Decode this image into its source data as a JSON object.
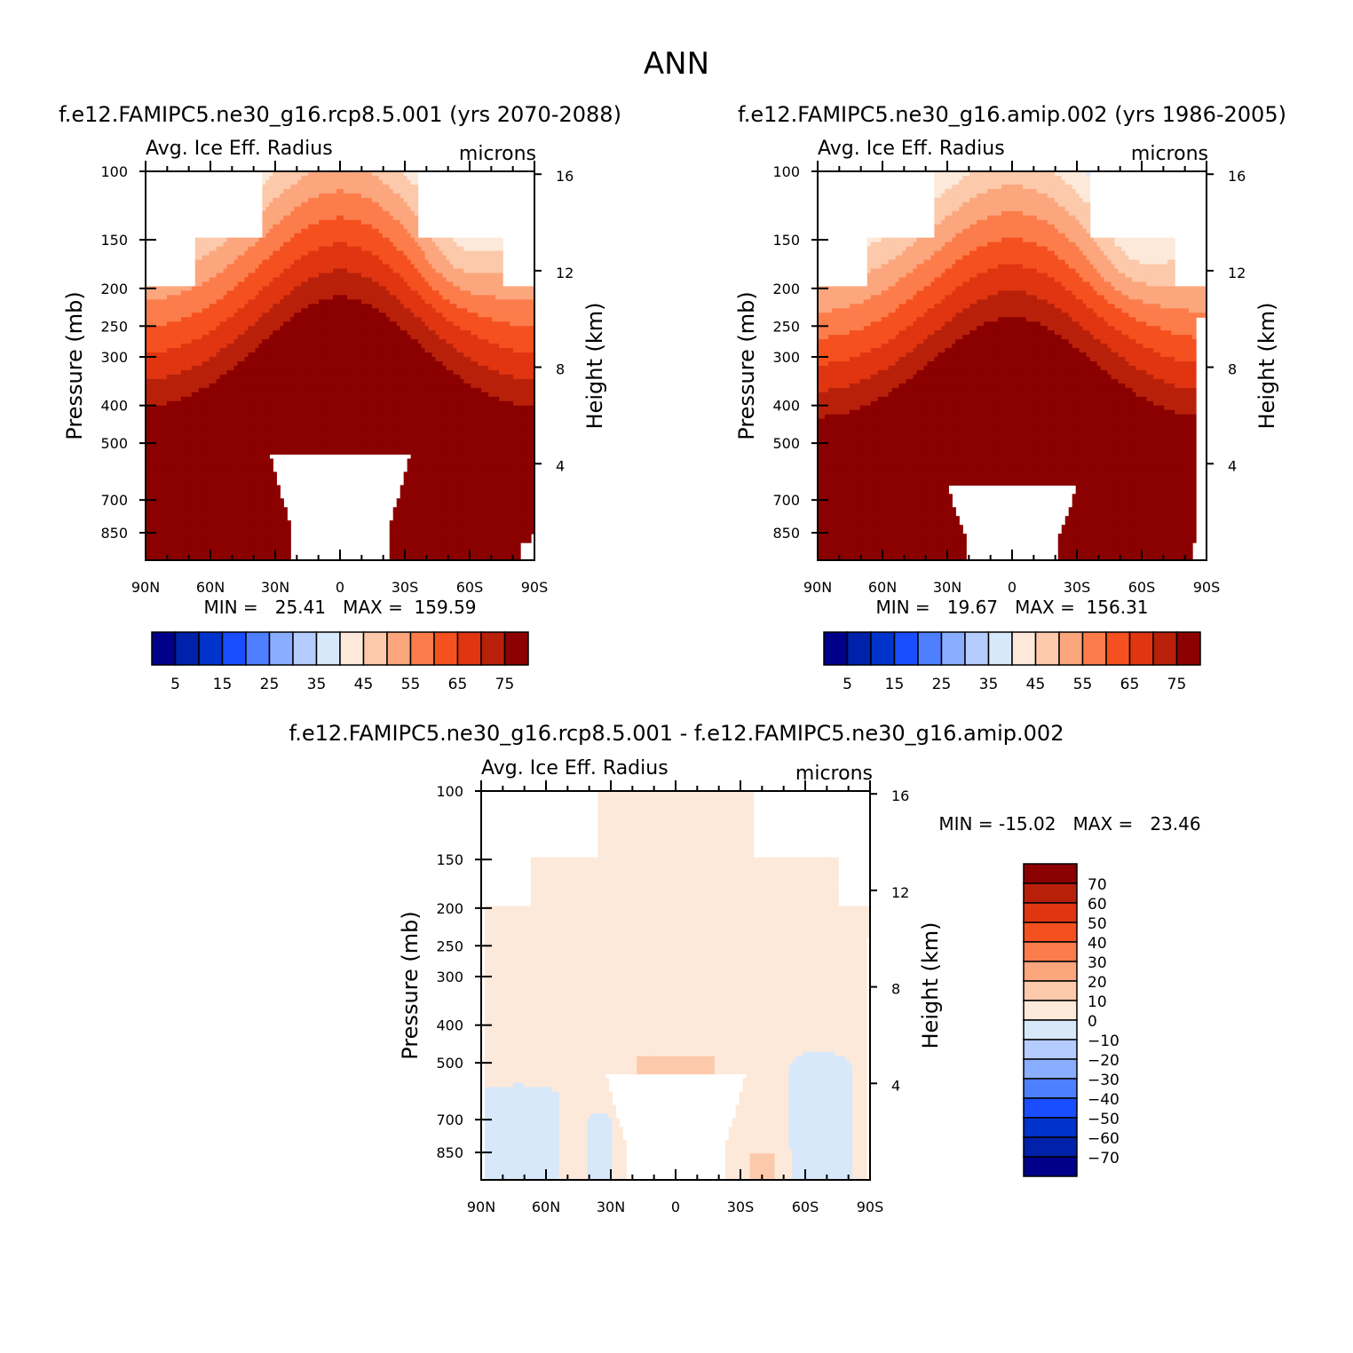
{
  "figure_title": "ANN",
  "colors": {
    "ramp16": [
      "#00008b",
      "#0022aa",
      "#0033cc",
      "#1a4dff",
      "#4d7fff",
      "#8aaeff",
      "#b5ccff",
      "#d6e8fa",
      "#fde9da",
      "#fcc9ab",
      "#fca67e",
      "#fc7d4b",
      "#f5501f",
      "#e03510",
      "#b8200a",
      "#8b0000"
    ],
    "diff_ramp": [
      "#8b0000",
      "#b8200a",
      "#e03510",
      "#f5501f",
      "#fc7d4b",
      "#fca67e",
      "#fcc9ab",
      "#fde9da",
      "#d6e8fa",
      "#b5ccff",
      "#8aaeff",
      "#4d7fff",
      "#1a4dff",
      "#0033cc",
      "#0022aa",
      "#00008b"
    ]
  },
  "chart_data": [
    {
      "type": "heatmap",
      "panel": "top-left",
      "title": "f.e12.FAMIPC5.ne30_g16.rcp8.5.001 (yrs 2070-2088)",
      "left_label": "Avg. Ice Eff. Radius",
      "right_label": "microns",
      "ylabel": "Pressure (mb)",
      "y2label": "Height (km)",
      "x_ticks": [
        "90N",
        "60N",
        "30N",
        "0",
        "30S",
        "60S",
        "90S"
      ],
      "y_ticks": [
        "100",
        "150",
        "200",
        "250",
        "300",
        "400",
        "500",
        "700",
        "850"
      ],
      "y2_ticks": [
        "16",
        "12",
        "8",
        "4"
      ],
      "min_max": "MIN =   25.41   MAX =  159.59",
      "min": 25.41,
      "max": 159.59,
      "colorbar_labels": [
        "5",
        "15",
        "25",
        "35",
        "45",
        "55",
        "65",
        "75"
      ],
      "levels": [
        0,
        5,
        10,
        15,
        20,
        25,
        30,
        35,
        40,
        45,
        50,
        55,
        60,
        65,
        70,
        75,
        80
      ],
      "units": "microns"
    },
    {
      "type": "heatmap",
      "panel": "top-right",
      "title": "f.e12.FAMIPC5.ne30_g16.amip.002 (yrs 1986-2005)",
      "left_label": "Avg. Ice Eff. Radius",
      "right_label": "microns",
      "ylabel": "Pressure (mb)",
      "y2label": "Height (km)",
      "x_ticks": [
        "90N",
        "60N",
        "30N",
        "0",
        "30S",
        "60S",
        "90S"
      ],
      "y_ticks": [
        "100",
        "150",
        "200",
        "250",
        "300",
        "400",
        "500",
        "700",
        "850"
      ],
      "y2_ticks": [
        "16",
        "12",
        "8",
        "4"
      ],
      "min_max": "MIN =   19.67   MAX =  156.31",
      "min": 19.67,
      "max": 156.31,
      "colorbar_labels": [
        "5",
        "15",
        "25",
        "35",
        "45",
        "55",
        "65",
        "75"
      ],
      "levels": [
        0,
        5,
        10,
        15,
        20,
        25,
        30,
        35,
        40,
        45,
        50,
        55,
        60,
        65,
        70,
        75,
        80
      ],
      "units": "microns"
    },
    {
      "type": "heatmap",
      "panel": "bottom",
      "title": "f.e12.FAMIPC5.ne30_g16.rcp8.5.001 - f.e12.FAMIPC5.ne30_g16.amip.002",
      "left_label": "Avg. Ice Eff. Radius",
      "right_label": "microns",
      "ylabel": "Pressure (mb)",
      "y2label": "Height (km)",
      "x_ticks": [
        "90N",
        "60N",
        "30N",
        "0",
        "30S",
        "60S",
        "90S"
      ],
      "y_ticks": [
        "100",
        "150",
        "200",
        "250",
        "300",
        "400",
        "500",
        "700",
        "850"
      ],
      "y2_ticks": [
        "16",
        "12",
        "8",
        "4"
      ],
      "min_max": "MIN = -15.02   MAX =   23.46",
      "min": -15.02,
      "max": 23.46,
      "colorbar_labels": [
        "70",
        "60",
        "50",
        "40",
        "30",
        "20",
        "10",
        "0",
        "-10",
        "-20",
        "-30",
        "-40",
        "-50",
        "-60",
        "-70"
      ],
      "levels": [
        -80,
        -70,
        -60,
        -50,
        -40,
        -30,
        -20,
        -10,
        0,
        10,
        20,
        30,
        40,
        50,
        60,
        70,
        80
      ],
      "units": "microns"
    }
  ]
}
